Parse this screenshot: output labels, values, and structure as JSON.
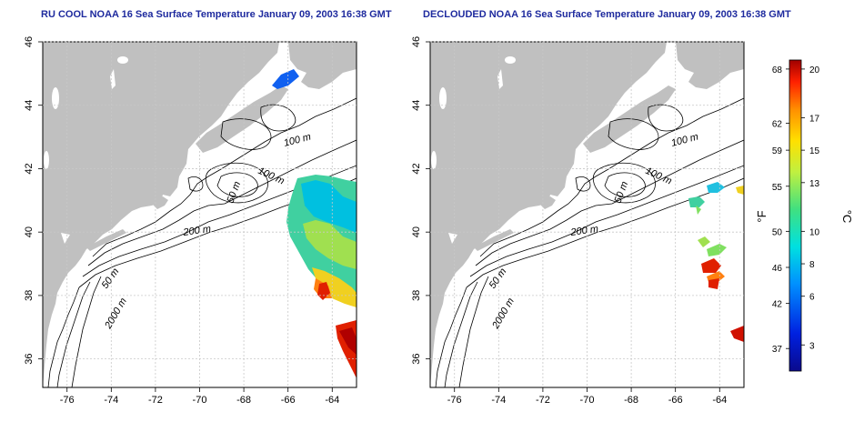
{
  "panels": [
    {
      "title": "RU COOL NOAA 16 Sea Surface Temperature January 09, 2003 16:38 GMT",
      "contours": [
        "100 m",
        "100 m",
        "50 m",
        "200 m",
        "50 m",
        "2000 m"
      ]
    },
    {
      "title": "DECLOUDED NOAA 16 Sea Surface Temperature January 09, 2003 16:38 GMT",
      "contours": [
        "100 m",
        "100 m",
        "50 m",
        "200 m",
        "50 m",
        "2000 m"
      ]
    }
  ],
  "axes": {
    "lon_ticks": [
      "-76",
      "-74",
      "-72",
      "-70",
      "-68",
      "-66",
      "-64"
    ],
    "lat_ticks": [
      "46",
      "44",
      "42",
      "40",
      "38",
      "36"
    ],
    "lon_range": [
      -77.1,
      -62.9
    ],
    "lat_range": [
      35.1,
      46.0
    ]
  },
  "colorbar": {
    "f_ticks": [
      "68",
      "62",
      "59",
      "55",
      "50",
      "46",
      "42",
      "37"
    ],
    "c_ticks": [
      "20",
      "17",
      "15",
      "13",
      "10",
      "8",
      "6",
      "3"
    ],
    "f_unit": "°F",
    "c_unit": "°C",
    "colors": [
      "#0a0a8c",
      "#0020e0",
      "#0090ff",
      "#00e0e0",
      "#40e080",
      "#c0f040",
      "#ffe000",
      "#ff9000",
      "#ff2000",
      "#a00000"
    ]
  },
  "colors": {
    "land": "#c0c0c0",
    "grid": "#c8c8c8",
    "title": "#1e2a9e"
  }
}
